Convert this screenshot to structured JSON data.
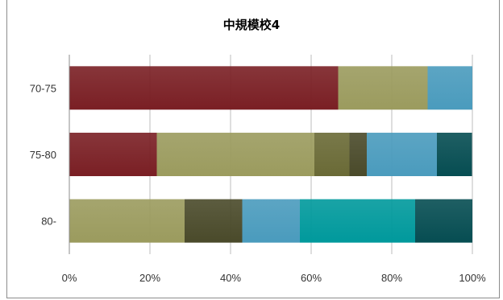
{
  "chart_data": {
    "type": "bar",
    "orientation": "horizontal",
    "stacked": "100%",
    "title": "中規模校4",
    "categories": [
      "70-75",
      "75-80",
      "80-"
    ],
    "x_ticks": [
      "0%",
      "20%",
      "40%",
      "60%",
      "80%",
      "100%"
    ],
    "xlim": [
      0,
      100
    ],
    "grid": "vertical",
    "legend": "none",
    "series": [
      {
        "color": "#7a1f24",
        "values": [
          66.7,
          21.7,
          0
        ]
      },
      {
        "color": "#9b9b5e",
        "values": [
          22.2,
          39.1,
          28.6
        ]
      },
      {
        "color": "#6a6a36",
        "values": [
          0,
          8.7,
          0
        ]
      },
      {
        "color": "#4a4a2a",
        "values": [
          0,
          4.3,
          14.3
        ]
      },
      {
        "color": "#4a9bbd",
        "values": [
          11.1,
          17.4,
          14.3
        ]
      },
      {
        "color": "#00999c",
        "values": [
          0,
          0,
          28.6
        ]
      },
      {
        "color": "#064d52",
        "values": [
          0,
          8.7,
          14.2
        ]
      }
    ]
  }
}
